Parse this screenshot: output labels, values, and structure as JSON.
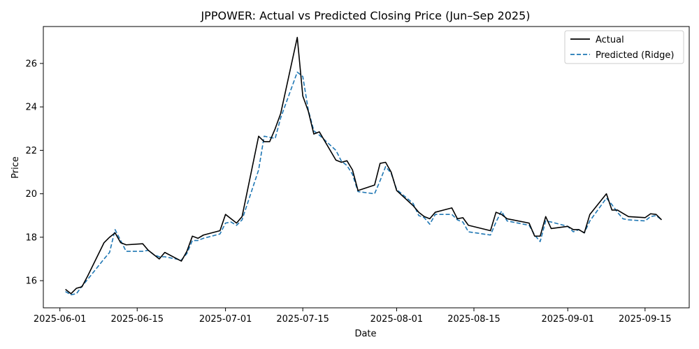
{
  "chart_data": {
    "type": "line",
    "title": "JPPOWER: Actual vs Predicted Closing Price (Jun–Sep 2025)",
    "xlabel": "Date",
    "ylabel": "Price",
    "xlim": [
      "2025-05-29",
      "2025-09-23"
    ],
    "ylim": [
      14.75,
      27.7
    ],
    "x_ticks": [
      "2025-06-01",
      "2025-06-15",
      "2025-07-01",
      "2025-07-15",
      "2025-08-01",
      "2025-08-15",
      "2025-09-01",
      "2025-09-15"
    ],
    "y_ticks": [
      16,
      18,
      20,
      22,
      24,
      26
    ],
    "grid": false,
    "legend": {
      "position": "upper-right",
      "entries": [
        "Actual",
        "Predicted (Ridge)"
      ]
    },
    "x": [
      "2025-06-02",
      "2025-06-03",
      "2025-06-04",
      "2025-06-05",
      "2025-06-06",
      "2025-06-09",
      "2025-06-10",
      "2025-06-11",
      "2025-06-12",
      "2025-06-13",
      "2025-06-16",
      "2025-06-17",
      "2025-06-18",
      "2025-06-19",
      "2025-06-20",
      "2025-06-23",
      "2025-06-24",
      "2025-06-25",
      "2025-06-26",
      "2025-06-27",
      "2025-06-30",
      "2025-07-01",
      "2025-07-02",
      "2025-07-03",
      "2025-07-04",
      "2025-07-07",
      "2025-07-08",
      "2025-07-09",
      "2025-07-10",
      "2025-07-11",
      "2025-07-14",
      "2025-07-15",
      "2025-07-16",
      "2025-07-17",
      "2025-07-18",
      "2025-07-21",
      "2025-07-22",
      "2025-07-23",
      "2025-07-24",
      "2025-07-25",
      "2025-07-28",
      "2025-07-29",
      "2025-07-30",
      "2025-07-31",
      "2025-08-01",
      "2025-08-04",
      "2025-08-05",
      "2025-08-06",
      "2025-08-07",
      "2025-08-08",
      "2025-08-11",
      "2025-08-12",
      "2025-08-13",
      "2025-08-14",
      "2025-08-18",
      "2025-08-19",
      "2025-08-20",
      "2025-08-21",
      "2025-08-22",
      "2025-08-25",
      "2025-08-26",
      "2025-08-27",
      "2025-08-28",
      "2025-08-29",
      "2025-09-01",
      "2025-09-02",
      "2025-09-03",
      "2025-09-04",
      "2025-09-05",
      "2025-09-08",
      "2025-09-09",
      "2025-09-10",
      "2025-09-11",
      "2025-09-12",
      "2025-09-15",
      "2025-09-16",
      "2025-09-17",
      "2025-09-18"
    ],
    "series": [
      {
        "name": "Actual",
        "color": "#000000",
        "dash": "solid",
        "values": [
          15.6,
          15.4,
          15.65,
          15.72,
          16.2,
          17.75,
          18.0,
          18.2,
          17.75,
          17.65,
          17.7,
          17.4,
          17.2,
          17.0,
          17.3,
          16.9,
          17.35,
          18.05,
          17.95,
          18.1,
          18.3,
          19.05,
          18.85,
          18.65,
          18.95,
          22.65,
          22.4,
          22.4,
          23.0,
          23.7,
          27.2,
          24.5,
          23.8,
          22.75,
          22.85,
          21.55,
          21.45,
          21.52,
          21.1,
          20.15,
          20.4,
          21.4,
          21.45,
          21.0,
          20.15,
          19.45,
          19.15,
          18.95,
          18.85,
          19.15,
          19.35,
          18.85,
          18.9,
          18.55,
          18.3,
          19.15,
          19.05,
          18.85,
          18.8,
          18.65,
          18.05,
          18.05,
          18.95,
          18.4,
          18.5,
          18.35,
          18.35,
          18.2,
          19.05,
          20.0,
          19.25,
          19.25,
          19.1,
          18.95,
          18.9,
          19.08,
          19.05,
          18.8
        ]
      },
      {
        "name": "Predicted (Ridge)",
        "color": "#1f77b4",
        "dash": "dashed",
        "values": [
          15.5,
          15.35,
          15.4,
          15.75,
          16.05,
          17.0,
          17.3,
          18.35,
          17.85,
          17.35,
          17.35,
          17.4,
          17.2,
          17.1,
          17.1,
          16.95,
          17.25,
          17.85,
          17.85,
          17.95,
          18.15,
          18.65,
          18.7,
          18.55,
          18.8,
          21.1,
          22.65,
          22.6,
          22.55,
          23.5,
          25.6,
          25.4,
          23.85,
          22.9,
          22.7,
          22.0,
          21.5,
          21.3,
          20.9,
          20.1,
          20.0,
          20.6,
          21.25,
          20.95,
          20.2,
          19.55,
          19.0,
          18.9,
          18.6,
          19.05,
          19.05,
          18.8,
          18.7,
          18.25,
          18.1,
          18.7,
          19.2,
          18.75,
          18.7,
          18.55,
          18.1,
          17.8,
          18.75,
          18.7,
          18.5,
          18.25,
          18.35,
          18.2,
          18.75,
          19.8,
          19.5,
          19.15,
          18.85,
          18.8,
          18.75,
          18.95,
          19.0,
          18.8
        ]
      }
    ]
  }
}
